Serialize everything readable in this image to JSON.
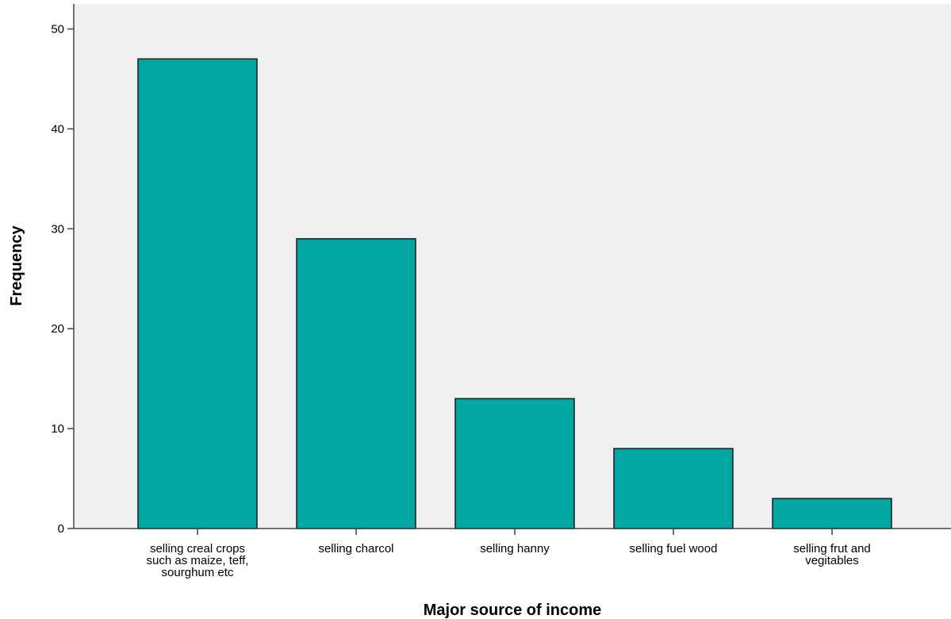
{
  "chart_data": {
    "type": "bar",
    "title": "",
    "xlabel": "Major source of income",
    "ylabel": "Frequency",
    "categories": [
      [
        "selling creal crops",
        "such as maize, teff,",
        "sourghum etc"
      ],
      [
        "selling charcol"
      ],
      [
        "selling hanny"
      ],
      [
        "selling fuel wood"
      ],
      [
        "selling frut and",
        "vegitables"
      ]
    ],
    "values": [
      47,
      29,
      13,
      8,
      3
    ],
    "ylim": [
      0,
      52.5
    ],
    "yticks": [
      0,
      10,
      20,
      30,
      40,
      50
    ],
    "grid": false,
    "legend": "none",
    "colors": {
      "bar_fill": "#00a6a2",
      "bar_stroke": "#1a1a1a",
      "plot_background": "#f0f0f0",
      "axis": "#444444"
    }
  }
}
